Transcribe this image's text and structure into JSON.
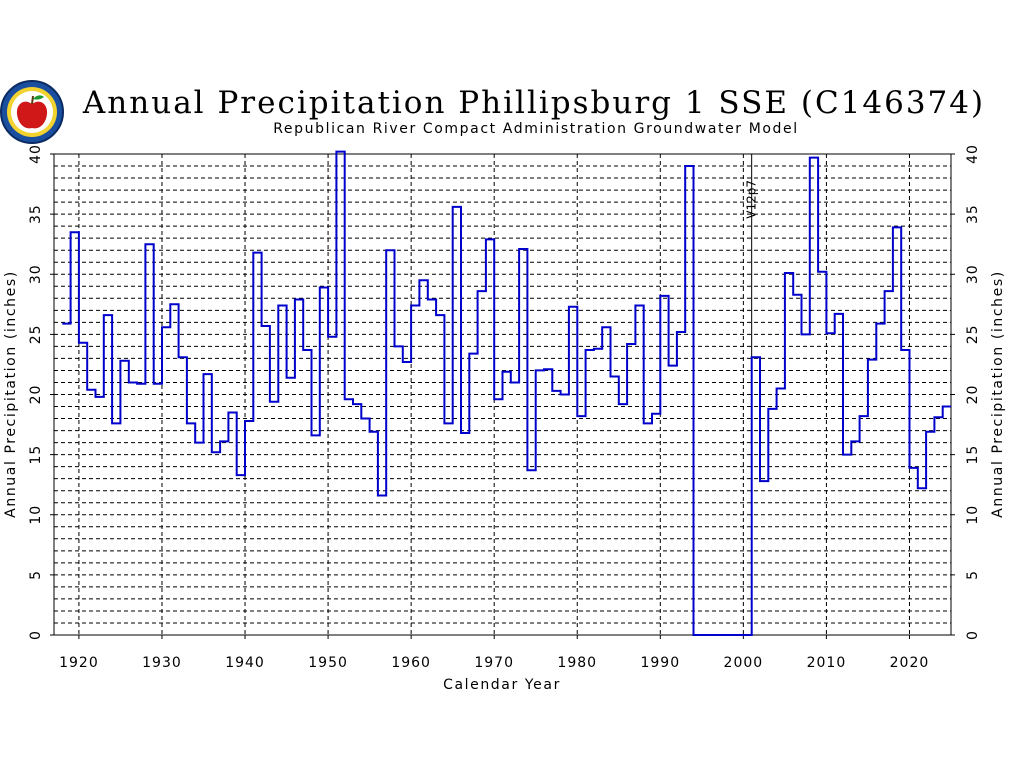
{
  "chart_data": {
    "type": "line",
    "step": true,
    "title": "Annual Precipitation Phillipsburg 1 SSE (C146374)",
    "subtitle": "Republican River Compact Administration Groundwater Model",
    "xlabel": "Calendar Year",
    "ylabel": "Annual Precipitation (inches)",
    "ylabel_right": "Annual Precipitation (inches)",
    "xlim": [
      1917,
      2025
    ],
    "ylim": [
      0,
      40
    ],
    "xticks": [
      1920,
      1930,
      1940,
      1950,
      1960,
      1970,
      1980,
      1990,
      2000,
      2010,
      2020
    ],
    "yticks": [
      0,
      5,
      10,
      15,
      20,
      25,
      30,
      35,
      40
    ],
    "grid": true,
    "series_color": "#0000cc",
    "annotations": [
      {
        "label": "V12p7",
        "x": 2001
      }
    ],
    "x": [
      1918,
      1919,
      1920,
      1921,
      1922,
      1923,
      1924,
      1925,
      1926,
      1927,
      1928,
      1929,
      1930,
      1931,
      1932,
      1933,
      1934,
      1935,
      1936,
      1937,
      1938,
      1939,
      1940,
      1941,
      1942,
      1943,
      1944,
      1945,
      1946,
      1947,
      1948,
      1949,
      1950,
      1951,
      1952,
      1953,
      1954,
      1955,
      1956,
      1957,
      1958,
      1959,
      1960,
      1961,
      1962,
      1963,
      1964,
      1965,
      1966,
      1967,
      1968,
      1969,
      1970,
      1971,
      1972,
      1973,
      1974,
      1975,
      1976,
      1977,
      1978,
      1979,
      1980,
      1981,
      1982,
      1983,
      1984,
      1985,
      1986,
      1987,
      1988,
      1989,
      1990,
      1991,
      1992,
      1993,
      1994,
      1995,
      1996,
      1997,
      1998,
      1999,
      2000,
      2001,
      2002,
      2003,
      2004,
      2005,
      2006,
      2007,
      2008,
      2009,
      2010,
      2011,
      2012,
      2013,
      2014,
      2015,
      2016,
      2017,
      2018,
      2019,
      2020,
      2021,
      2022,
      2023,
      2024
    ],
    "values": [
      25.9,
      33.5,
      24.3,
      20.4,
      19.8,
      26.6,
      17.6,
      22.8,
      21.0,
      20.9,
      32.5,
      20.9,
      25.6,
      27.5,
      23.1,
      17.6,
      16.0,
      21.7,
      15.2,
      16.1,
      18.5,
      13.3,
      17.8,
      31.8,
      25.7,
      19.4,
      27.4,
      21.4,
      27.9,
      23.7,
      16.6,
      28.9,
      24.8,
      40.2,
      19.6,
      19.2,
      18.0,
      16.9,
      11.6,
      32.0,
      24.0,
      22.7,
      27.4,
      29.5,
      27.9,
      26.6,
      17.6,
      35.6,
      16.8,
      23.4,
      28.6,
      32.9,
      19.6,
      21.9,
      21.0,
      32.1,
      13.7,
      22.0,
      22.1,
      20.3,
      20.0,
      27.3,
      18.2,
      23.7,
      23.8,
      25.6,
      21.5,
      19.2,
      24.2,
      27.4,
      17.6,
      18.4,
      28.2,
      22.4,
      25.2,
      39.0,
      0,
      0,
      0,
      0,
      0,
      0,
      0,
      23.1,
      12.8,
      18.8,
      20.5,
      30.1,
      28.3,
      25.0,
      39.7,
      30.2,
      25.1,
      26.7,
      15.0,
      16.1,
      18.2,
      22.9,
      25.9,
      28.6,
      33.9,
      23.7,
      13.9,
      12.2,
      16.9,
      18.1,
      19.0
    ]
  }
}
